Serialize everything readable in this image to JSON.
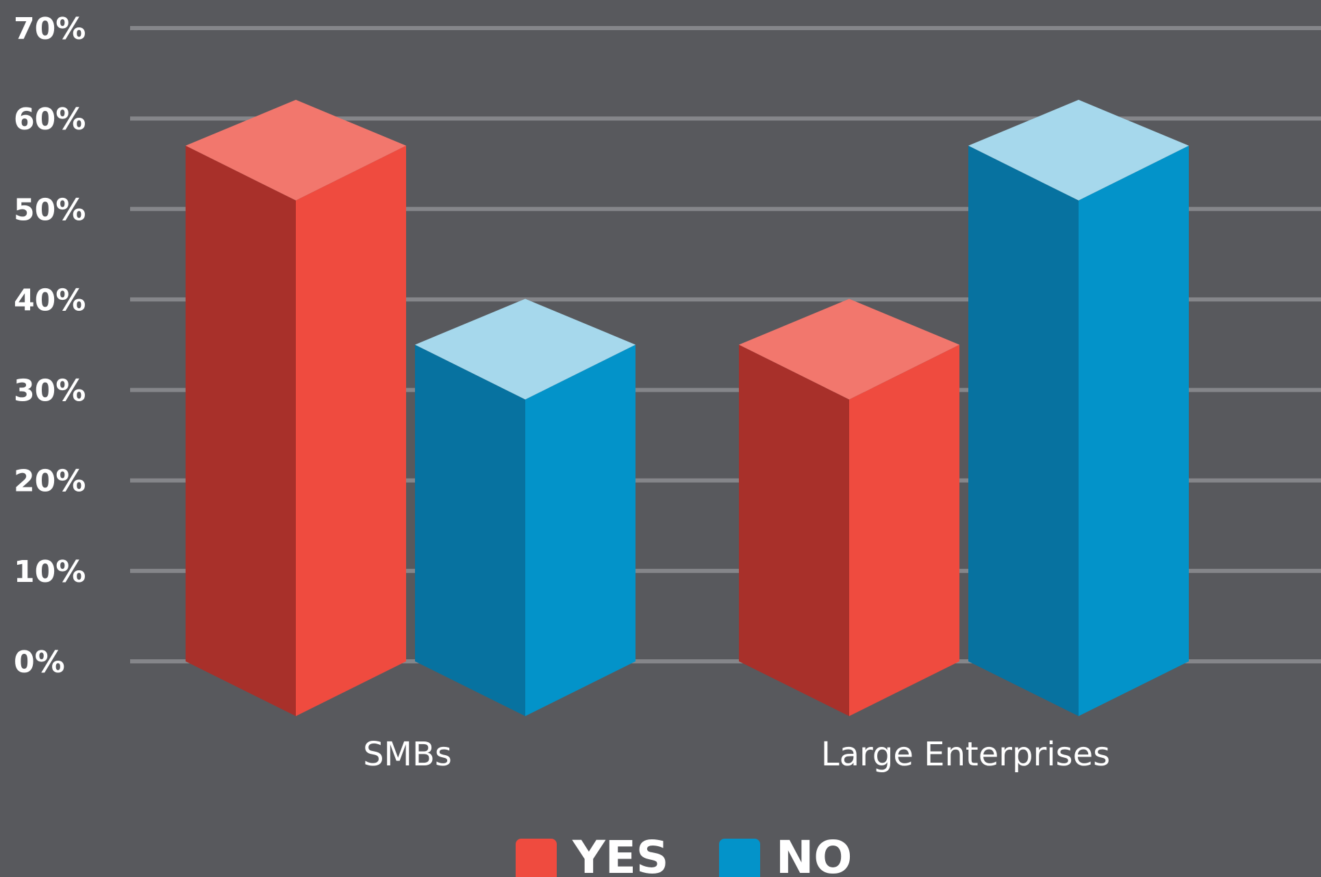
{
  "chart_data": {
    "type": "bar",
    "style": "3d-isometric",
    "categories": [
      "SMBs",
      "Large Enterprises"
    ],
    "series": [
      {
        "name": "YES",
        "values": [
          57,
          35
        ],
        "color": "#ef4b3f",
        "color_dark": "#a8302a",
        "color_top": "#f2776d"
      },
      {
        "name": "NO",
        "values": [
          35,
          57
        ],
        "color": "#0393c9",
        "color_dark": "#0772a0",
        "color_top": "#a6d8ec"
      }
    ],
    "yticks": [
      0,
      10,
      20,
      30,
      40,
      50,
      60,
      70
    ],
    "ytick_labels": [
      "0%",
      "10%",
      "20%",
      "30%",
      "40%",
      "50%",
      "60%",
      "70%"
    ],
    "ylim": [
      0,
      70
    ],
    "grid": true,
    "legend_position": "bottom-center",
    "title": "",
    "xlabel": "",
    "ylabel": ""
  }
}
